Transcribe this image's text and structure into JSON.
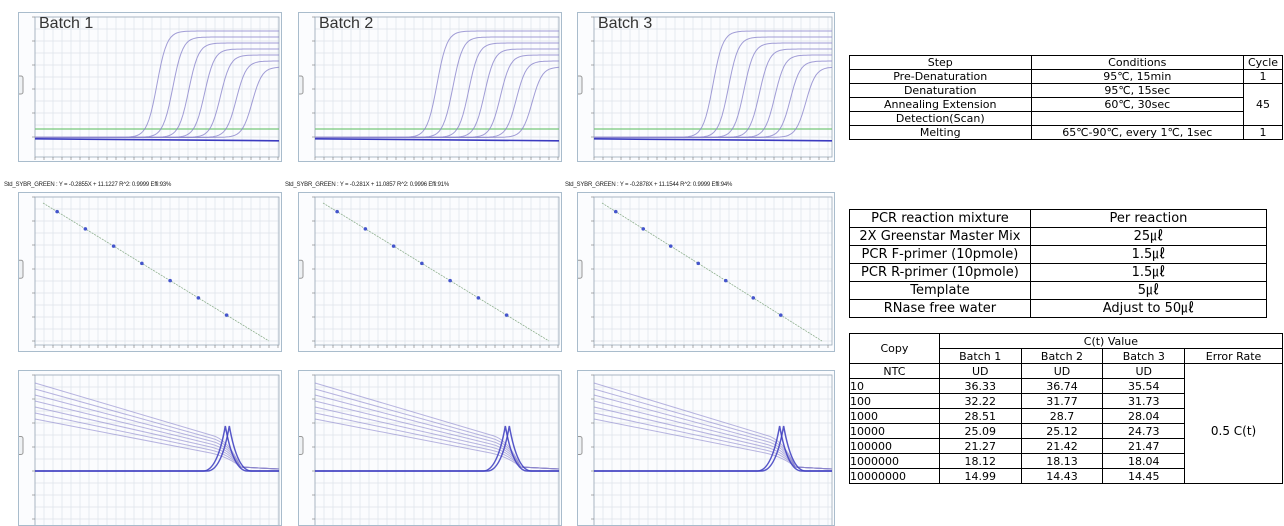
{
  "batches": [
    {
      "title": "Batch 1",
      "equation": "Std_SYBR_GREEN : Y = -0.2855X + 11.1227    R^2: 0.9999 Effi:93%"
    },
    {
      "title": "Batch 2",
      "equation": "Std_SYBR_GREEN : Y = -0.281X + 11.0857    R^2: 0.9996 Effi:91%"
    },
    {
      "title": "Batch 3",
      "equation": "Std_SYBR_GREEN : Y = -0.2878X + 11.1544    R^2: 0.9999 Effi:94%"
    }
  ],
  "chart_data": [
    {
      "type": "line",
      "panel": "amplification",
      "series_count": 7,
      "grid": true,
      "colors": {
        "curves": "#8b84cc",
        "threshold": "#77c77a",
        "baseline": "#3b3bc0"
      }
    },
    {
      "type": "scatter",
      "panel": "standard-curve",
      "fit": [
        {
          "batch": "Batch 1",
          "slope": -0.2855,
          "intercept": 11.1227,
          "r2": 0.9999,
          "efficiency": "93%"
        },
        {
          "batch": "Batch 2",
          "slope": -0.281,
          "intercept": 11.0857,
          "r2": 0.9996,
          "efficiency": "91%"
        },
        {
          "batch": "Batch 3",
          "slope": -0.2878,
          "intercept": 11.1544,
          "r2": 0.9999,
          "efficiency": "94%"
        }
      ]
    },
    {
      "type": "line",
      "panel": "melting-curve",
      "series_count": 7,
      "grid": true
    },
    {
      "type": "table",
      "title": "C(t) Value",
      "columns": [
        "Copy",
        "Batch 1",
        "Batch 2",
        "Batch 3",
        "Error Rate"
      ],
      "rows": [
        {
          "copy": "NTC",
          "b1": "UD",
          "b2": "UD",
          "b3": "UD"
        },
        {
          "copy": "10",
          "b1": "36.33",
          "b2": "36.74",
          "b3": "35.54"
        },
        {
          "copy": "100",
          "b1": "32.22",
          "b2": "31.77",
          "b3": "31.73"
        },
        {
          "copy": "1000",
          "b1": "28.51",
          "b2": "28.7",
          "b3": "28.04"
        },
        {
          "copy": "10000",
          "b1": "25.09",
          "b2": "25.12",
          "b3": "24.73"
        },
        {
          "copy": "100000",
          "b1": "21.27",
          "b2": "21.42",
          "b3": "21.47"
        },
        {
          "copy": "1000000",
          "b1": "18.12",
          "b2": "18.13",
          "b3": "18.04"
        },
        {
          "copy": "10000000",
          "b1": "14.99",
          "b2": "14.43",
          "b3": "14.45"
        }
      ],
      "error_rate": "0.5 C(t)"
    }
  ],
  "steps_table": {
    "headers": [
      "Step",
      "Conditions",
      "Cycle"
    ],
    "rows": [
      {
        "step": "Pre-Denaturation",
        "cond": "95℃, 15min",
        "cycle": "1"
      },
      {
        "step": "Denaturation",
        "cond": "95℃, 15sec"
      },
      {
        "step": "Annealing Extension",
        "cond": "60℃, 30sec"
      },
      {
        "step": "Detection(Scan)",
        "cond": ""
      },
      {
        "step": "Melting",
        "cond": "65℃-90℃, every 1℃, 1sec",
        "cycle": "1"
      }
    ],
    "merged_cycle": "45"
  },
  "mix_table": {
    "headers": [
      "PCR reaction mixture",
      "Per reaction"
    ],
    "rows": [
      {
        "item": "2X Greenstar Master Mix",
        "amount": "25㎕"
      },
      {
        "item": "PCR F-primer (10pmole)",
        "amount": "1.5㎕"
      },
      {
        "item": "PCR R-primer (10pmole)",
        "amount": "1.5㎕"
      },
      {
        "item": "Template",
        "amount": "5㎕"
      },
      {
        "item": "RNase free water",
        "amount": "Adjust to 50㎕"
      }
    ]
  },
  "ct_table": {
    "copy_header": "Copy",
    "group_header": "C(t) Value",
    "batch_headers": [
      "Batch 1",
      "Batch 2",
      "Batch 3"
    ],
    "error_header": "Error Rate"
  }
}
